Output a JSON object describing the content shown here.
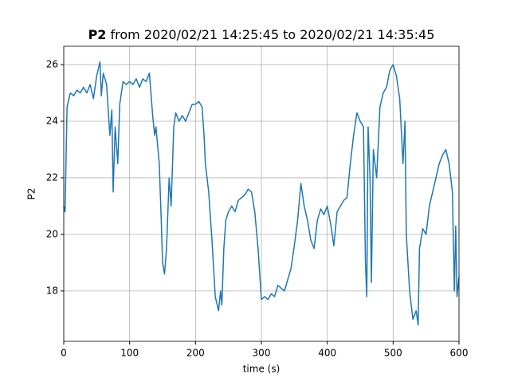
{
  "chart_data": {
    "type": "line",
    "title": {
      "variable": "P2",
      "text": "from 2020/02/21 14:25:45 to 2020/02/21 14:35:45"
    },
    "xlabel": "time (s)",
    "ylabel": "P2",
    "x": [
      0,
      2,
      5,
      10,
      15,
      20,
      25,
      30,
      35,
      40,
      45,
      50,
      55,
      57,
      60,
      65,
      70,
      73,
      75,
      78,
      82,
      85,
      90,
      95,
      100,
      105,
      110,
      115,
      120,
      125,
      130,
      135,
      138,
      140,
      145,
      148,
      150,
      153,
      156,
      160,
      163,
      167,
      170,
      175,
      180,
      185,
      190,
      195,
      200,
      205,
      210,
      213,
      215,
      220,
      225,
      230,
      235,
      238,
      240,
      243,
      246,
      250,
      255,
      260,
      265,
      270,
      275,
      280,
      285,
      290,
      295,
      300,
      305,
      310,
      315,
      320,
      325,
      330,
      335,
      340,
      345,
      350,
      355,
      360,
      365,
      370,
      375,
      380,
      385,
      390,
      395,
      400,
      405,
      410,
      415,
      420,
      425,
      430,
      435,
      440,
      445,
      450,
      455,
      458,
      460,
      462,
      465,
      467,
      470,
      475,
      480,
      485,
      490,
      495,
      500,
      505,
      510,
      515,
      518,
      520,
      525,
      530,
      535,
      538,
      540,
      545,
      550,
      555,
      560,
      565,
      570,
      575,
      580,
      585,
      590,
      593,
      595,
      597,
      600
    ],
    "series": [
      {
        "name": "P2",
        "color": "#1f77b4",
        "values": [
          21,
          20.8,
          24.5,
          25.0,
          24.9,
          25.1,
          25.0,
          25.2,
          25.0,
          25.3,
          24.8,
          25.6,
          26.1,
          24.9,
          25.7,
          25.3,
          23.5,
          24.4,
          21.5,
          23.8,
          22.5,
          24.6,
          25.4,
          25.3,
          25.4,
          25.3,
          25.5,
          25.2,
          25.5,
          25.4,
          25.7,
          24.2,
          23.5,
          23.8,
          22.5,
          20.5,
          19.0,
          18.6,
          19.5,
          22,
          21,
          23.8,
          24.3,
          24.0,
          24.2,
          24.0,
          24.3,
          24.6,
          24.6,
          24.7,
          24.5,
          23.5,
          22.5,
          21.5,
          19.8,
          17.8,
          17.3,
          18,
          17.5,
          19.5,
          20.5,
          20.8,
          21.0,
          20.8,
          21.2,
          21.3,
          21.4,
          21.6,
          21.5,
          20.8,
          19.5,
          17.7,
          17.8,
          17.7,
          17.9,
          17.8,
          18.2,
          18.1,
          18.0,
          18.4,
          18.8,
          19.6,
          20.5,
          21.8,
          21.0,
          20.5,
          19.8,
          19.5,
          20.5,
          20.9,
          20.7,
          21.0,
          20.4,
          19.6,
          20.8,
          21.0,
          21.2,
          21.3,
          22.5,
          23.5,
          24.3,
          24.0,
          23.8,
          19,
          17.8,
          23.8,
          22,
          18.3,
          23.0,
          22.0,
          24.5,
          25.0,
          25.2,
          25.8,
          26.0,
          25.6,
          24.8,
          22.5,
          24.0,
          20.0,
          18.0,
          17.0,
          17.3,
          16.8,
          19.5,
          20.2,
          20.0,
          21.0,
          21.5,
          22.0,
          22.5,
          22.8,
          23.0,
          22.5,
          21.5,
          18.0,
          20.3,
          17.8,
          18.5
        ]
      }
    ],
    "xlim": [
      0,
      600
    ],
    "xticks": [
      0,
      100,
      200,
      300,
      400,
      500,
      600
    ],
    "ylim": [
      16.22,
      26.65
    ],
    "yticks": [
      18,
      20,
      22,
      24,
      26
    ],
    "grid": true
  }
}
